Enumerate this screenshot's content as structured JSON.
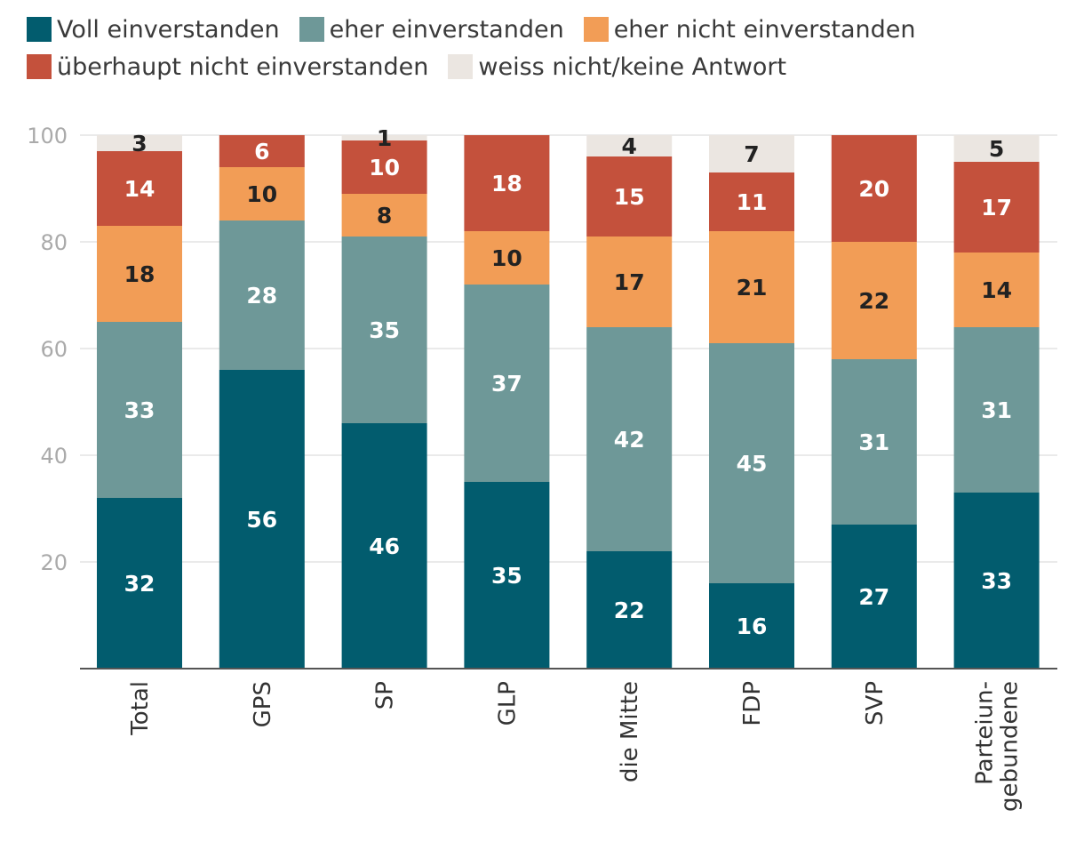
{
  "chart_data": {
    "type": "bar",
    "stacked": true,
    "categories": [
      "Total",
      "GPS",
      "SP",
      "GLP",
      "die Mitte",
      "FDP",
      "SVP",
      "Partei-ungebundene"
    ],
    "category_lines": [
      [
        "Total"
      ],
      [
        "GPS"
      ],
      [
        "SP"
      ],
      [
        "GLP"
      ],
      [
        "die Mitte"
      ],
      [
        "FDP"
      ],
      [
        "SVP"
      ],
      [
        "Parteiun-",
        "gebundene"
      ]
    ],
    "series": [
      {
        "name": "Voll einverstanden",
        "color": "#025c6e",
        "label_color": "#ffffff",
        "values": [
          32,
          56,
          46,
          35,
          22,
          16,
          27,
          33
        ]
      },
      {
        "name": "eher einverstanden",
        "color": "#6e9898",
        "label_color": "#ffffff",
        "values": [
          33,
          28,
          35,
          37,
          42,
          45,
          31,
          31
        ]
      },
      {
        "name": "eher nicht einverstanden",
        "color": "#f29d56",
        "label_color": "#222222",
        "values": [
          18,
          10,
          8,
          10,
          17,
          21,
          22,
          14
        ]
      },
      {
        "name": "überhaupt nicht einverstanden",
        "color": "#c4513c",
        "label_color": "#ffffff",
        "values": [
          14,
          6,
          10,
          18,
          15,
          11,
          20,
          17
        ]
      },
      {
        "name": "weiss nicht/keine Antwort",
        "color": "#ebe6e1",
        "label_color": "#222222",
        "values": [
          3,
          0,
          1,
          0,
          4,
          7,
          0,
          5
        ]
      }
    ],
    "ylim": [
      0,
      100
    ],
    "yticks": [
      20,
      40,
      60,
      80,
      100
    ],
    "grid": true,
    "legend": "top"
  }
}
